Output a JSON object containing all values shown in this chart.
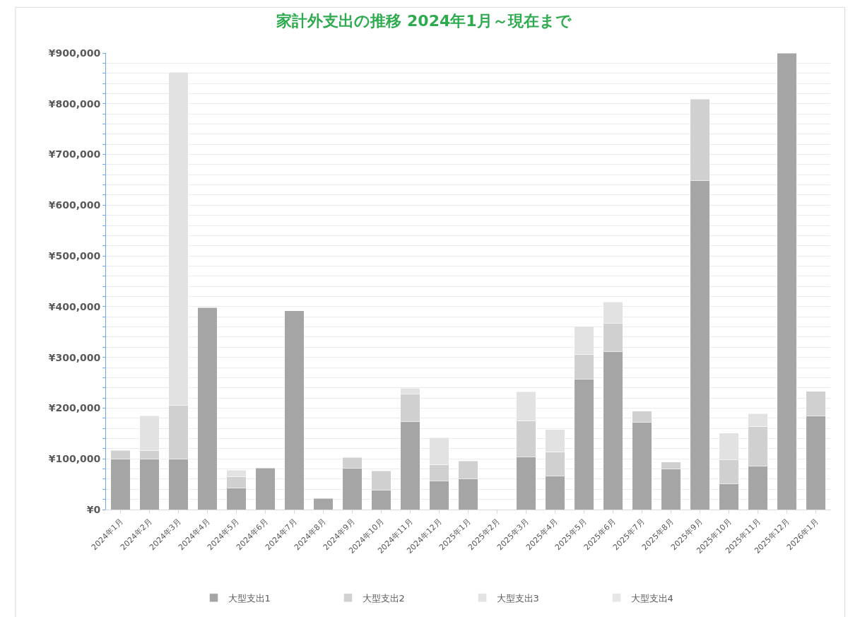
{
  "chart_data": {
    "type": "bar",
    "title": "家計外支出の推移 2024年1月～現在まで",
    "stacked": true,
    "grid": "y",
    "legend": "bottom",
    "categories": [
      "2024年1月",
      "2024年2月",
      "2024年3月",
      "2024年4月",
      "2024年5月",
      "2024年6月",
      "2024年7月",
      "2024年8月",
      "2024年9月",
      "2024年10月",
      "2024年11月",
      "2024年12月",
      "2025年1月",
      "2025年2月",
      "2025年3月",
      "2025年4月",
      "2025年5月",
      "2025年6月",
      "2025年7月",
      "2025年8月",
      "2025年9月",
      "2025年10月",
      "2025年11月",
      "2025年12月",
      "2026年1月"
    ],
    "ylim": [
      0,
      900000
    ],
    "yticks": [
      {
        "value": 0,
        "label": "¥0"
      },
      {
        "value": 20000,
        "label": null
      },
      {
        "value": 40000,
        "label": null
      },
      {
        "value": 60000,
        "label": null
      },
      {
        "value": 80000,
        "label": null
      },
      {
        "value": 100000,
        "label": "¥100,000"
      },
      {
        "value": 120000,
        "label": null
      },
      {
        "value": 140000,
        "label": null
      },
      {
        "value": 160000,
        "label": null
      },
      {
        "value": 180000,
        "label": null
      },
      {
        "value": 200000,
        "label": "¥200,000"
      },
      {
        "value": 220000,
        "label": null
      },
      {
        "value": 240000,
        "label": null
      },
      {
        "value": 260000,
        "label": null
      },
      {
        "value": 280000,
        "label": null
      },
      {
        "value": 300000,
        "label": "¥300,000"
      },
      {
        "value": 320000,
        "label": null
      },
      {
        "value": 340000,
        "label": null
      },
      {
        "value": 360000,
        "label": null
      },
      {
        "value": 380000,
        "label": null
      },
      {
        "value": 400000,
        "label": "¥400,000"
      },
      {
        "value": 420000,
        "label": null
      },
      {
        "value": 440000,
        "label": null
      },
      {
        "value": 460000,
        "label": null
      },
      {
        "value": 480000,
        "label": null
      },
      {
        "value": 500000,
        "label": "¥500,000"
      },
      {
        "value": 520000,
        "label": null
      },
      {
        "value": 540000,
        "label": null
      },
      {
        "value": 560000,
        "label": null
      },
      {
        "value": 580000,
        "label": null
      },
      {
        "value": 600000,
        "label": "¥600,000"
      },
      {
        "value": 620000,
        "label": null
      },
      {
        "value": 640000,
        "label": null
      },
      {
        "value": 660000,
        "label": null
      },
      {
        "value": 680000,
        "label": null
      },
      {
        "value": 700000,
        "label": "¥700,000"
      },
      {
        "value": 720000,
        "label": null
      },
      {
        "value": 740000,
        "label": null
      },
      {
        "value": 760000,
        "label": null
      },
      {
        "value": 780000,
        "label": null
      },
      {
        "value": 800000,
        "label": "¥800,000"
      },
      {
        "value": 820000,
        "label": null
      },
      {
        "value": 840000,
        "label": null
      },
      {
        "value": 860000,
        "label": null
      },
      {
        "value": 880000,
        "label": null
      },
      {
        "value": 900000,
        "label": "¥900,000"
      }
    ],
    "series": [
      {
        "name": "大型支出1",
        "color": "#a5a5a5",
        "values": [
          100000,
          100000,
          100000,
          398000,
          43000,
          82000,
          392000,
          22000,
          82000,
          39000,
          174000,
          56000,
          60000,
          null,
          104000,
          66000,
          257000,
          311000,
          172000,
          80000,
          649000,
          51000,
          86000,
          900000,
          185000
        ]
      },
      {
        "name": "大型支出2",
        "color": "#d0d0d0",
        "values": [
          17000,
          17000,
          105000,
          null,
          22000,
          null,
          null,
          null,
          21000,
          37000,
          54000,
          33000,
          36000,
          null,
          71000,
          48000,
          49000,
          56000,
          22000,
          14000,
          160000,
          47000,
          78000,
          null,
          48000
        ]
      },
      {
        "name": "大型支出3",
        "color": "#e2e2e2",
        "values": [
          null,
          68000,
          657000,
          null,
          13000,
          null,
          null,
          null,
          null,
          null,
          11000,
          53000,
          null,
          null,
          57000,
          44000,
          55000,
          42000,
          null,
          null,
          null,
          53000,
          25000,
          null,
          null
        ]
      },
      {
        "name": "大型支出4",
        "color": "#e6e6e6",
        "values": [
          null,
          null,
          null,
          null,
          null,
          null,
          null,
          null,
          null,
          null,
          null,
          null,
          null,
          null,
          null,
          null,
          null,
          null,
          null,
          null,
          null,
          null,
          null,
          null,
          null
        ]
      }
    ]
  }
}
